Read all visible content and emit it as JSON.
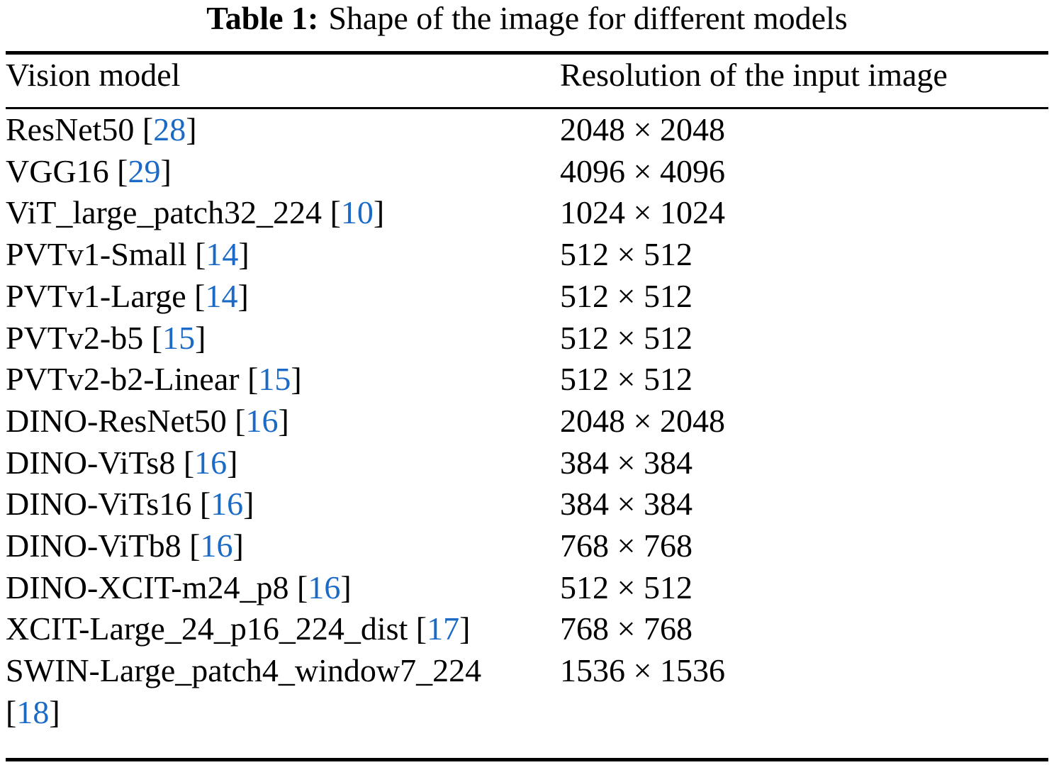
{
  "caption": {
    "label": "Table 1:",
    "text": "Shape of the image for different models"
  },
  "columns": {
    "model": "Vision model",
    "resolution": "Resolution of the input image"
  },
  "citation": {
    "open": "[",
    "close": "]"
  },
  "rows": [
    {
      "name": "ResNet50",
      "ref": "28",
      "resolution": "2048 × 2048"
    },
    {
      "name": "VGG16",
      "ref": "29",
      "resolution": "4096 × 4096"
    },
    {
      "name": "ViT_large_patch32_224",
      "ref": "10",
      "resolution": "1024 × 1024"
    },
    {
      "name": "PVTv1-Small",
      "ref": "14",
      "resolution": "512 × 512"
    },
    {
      "name": "PVTv1-Large",
      "ref": "14",
      "resolution": "512 × 512"
    },
    {
      "name": "PVTv2-b5",
      "ref": "15",
      "resolution": "512 × 512"
    },
    {
      "name": "PVTv2-b2-Linear",
      "ref": "15",
      "resolution": "512 × 512"
    },
    {
      "name": "DINO-ResNet50",
      "ref": "16",
      "resolution": "2048 × 2048"
    },
    {
      "name": "DINO-ViTs8",
      "ref": "16",
      "resolution": "384 × 384"
    },
    {
      "name": "DINO-ViTs16",
      "ref": "16",
      "resolution": "384 × 384"
    },
    {
      "name": "DINO-ViTb8",
      "ref": "16",
      "resolution": "768 × 768"
    },
    {
      "name": "DINO-XCIT-m24_p8",
      "ref": "16",
      "resolution": "512 × 512"
    },
    {
      "name": "XCIT-Large_24_p16_224_dist",
      "ref": "17",
      "resolution": "768 × 768"
    },
    {
      "name": "SWIN-Large_patch4_window7_224",
      "ref": "18",
      "resolution": "1536 × 1536"
    }
  ],
  "colors": {
    "citation_link": "#1a6ac6",
    "text": "#000000",
    "background": "#ffffff"
  }
}
